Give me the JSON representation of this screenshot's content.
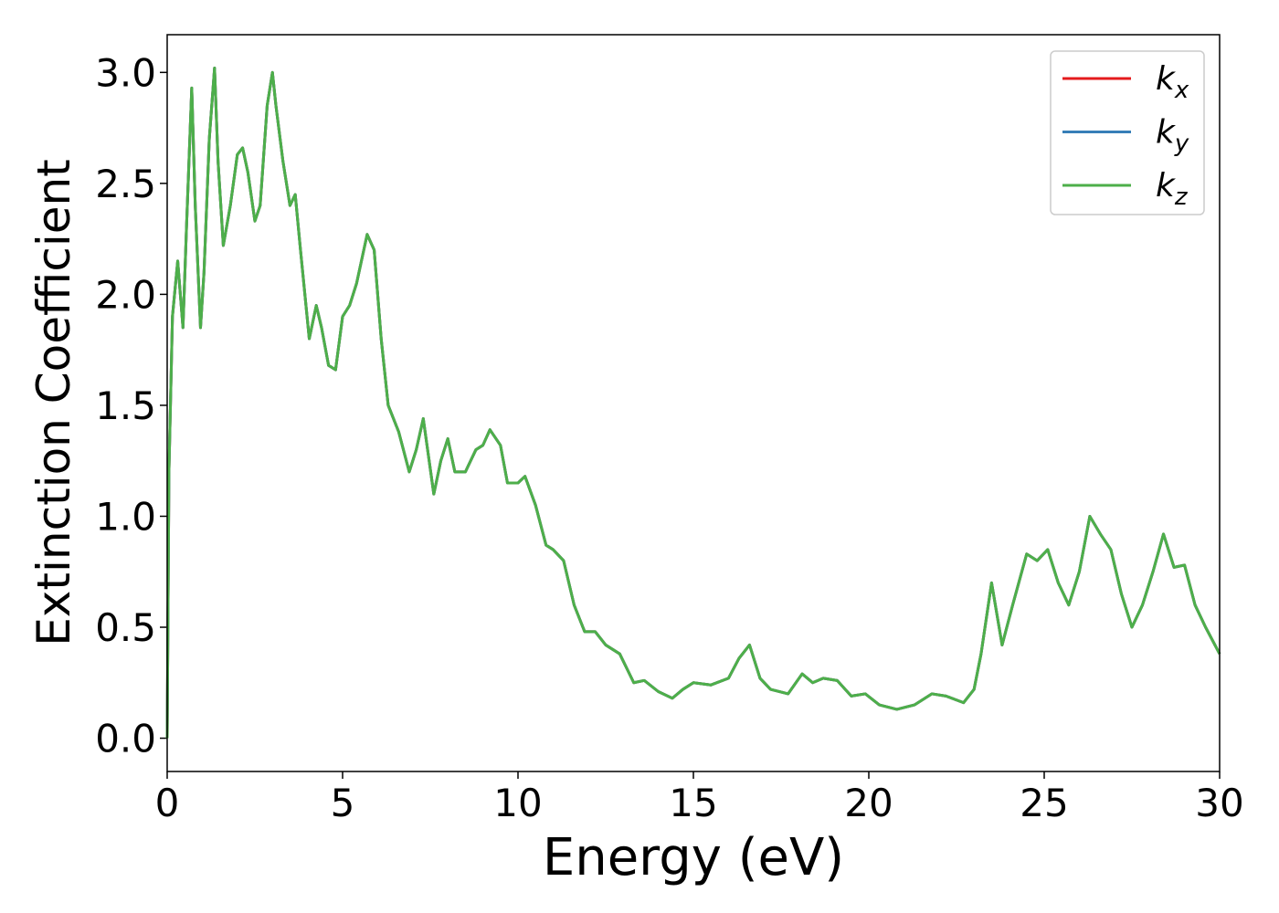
{
  "chart_data": {
    "type": "line",
    "xlabel": "Energy (eV)",
    "ylabel": "Extinction Coefficient",
    "xlim": [
      0,
      30
    ],
    "xticks": [
      0,
      5,
      10,
      15,
      20,
      25,
      30
    ],
    "ylim": [
      -0.15,
      3.17
    ],
    "yticks": [
      {
        "value": 0,
        "label": "0.0"
      },
      {
        "value": 0.5,
        "label": "0.5"
      },
      {
        "value": 1,
        "label": "1.0"
      },
      {
        "value": 1.5,
        "label": "1.5"
      },
      {
        "value": 2,
        "label": "2.0"
      },
      {
        "value": 2.5,
        "label": "2.5"
      },
      {
        "value": 3,
        "label": "3.0"
      }
    ],
    "legend": "upper right",
    "x": [
      0,
      0.05,
      0.15,
      0.3,
      0.45,
      0.55,
      0.7,
      0.8,
      0.95,
      1.05,
      1.2,
      1.35,
      1.45,
      1.6,
      1.8,
      2.0,
      2.15,
      2.3,
      2.5,
      2.65,
      2.85,
      3.0,
      3.1,
      3.3,
      3.5,
      3.65,
      3.8,
      4.05,
      4.25,
      4.4,
      4.6,
      4.8,
      5.0,
      5.2,
      5.4,
      5.7,
      5.9,
      6.1,
      6.3,
      6.6,
      6.9,
      7.1,
      7.3,
      7.6,
      7.8,
      8.0,
      8.2,
      8.5,
      8.8,
      9.0,
      9.2,
      9.5,
      9.7,
      10.0,
      10.2,
      10.5,
      10.8,
      11.0,
      11.3,
      11.6,
      11.9,
      12.2,
      12.5,
      12.9,
      13.3,
      13.6,
      14.0,
      14.4,
      14.7,
      15.0,
      15.5,
      16.0,
      16.3,
      16.6,
      16.9,
      17.2,
      17.7,
      18.1,
      18.4,
      18.7,
      19.1,
      19.5,
      19.9,
      20.3,
      20.8,
      21.3,
      21.8,
      22.2,
      22.7,
      23.0,
      23.2,
      23.5,
      23.8,
      24.1,
      24.5,
      24.8,
      25.1,
      25.4,
      25.7,
      26.0,
      26.3,
      26.6,
      26.9,
      27.2,
      27.5,
      27.8,
      28.1,
      28.4,
      28.7,
      29.0,
      29.3,
      29.6,
      30.0
    ],
    "series": [
      {
        "name": "kx",
        "color": "#e41a1c",
        "values": [
          0.0,
          1.2,
          1.9,
          2.15,
          1.85,
          2.3,
          2.93,
          2.4,
          1.85,
          2.1,
          2.7,
          3.02,
          2.6,
          2.22,
          2.4,
          2.63,
          2.66,
          2.55,
          2.33,
          2.4,
          2.85,
          3.0,
          2.85,
          2.6,
          2.4,
          2.45,
          2.2,
          1.8,
          1.95,
          1.85,
          1.68,
          1.66,
          1.9,
          1.95,
          2.05,
          2.27,
          2.2,
          1.8,
          1.5,
          1.38,
          1.2,
          1.3,
          1.44,
          1.1,
          1.25,
          1.35,
          1.2,
          1.2,
          1.3,
          1.32,
          1.39,
          1.32,
          1.15,
          1.15,
          1.18,
          1.05,
          0.87,
          0.85,
          0.8,
          0.6,
          0.48,
          0.48,
          0.42,
          0.38,
          0.25,
          0.26,
          0.21,
          0.18,
          0.22,
          0.25,
          0.24,
          0.27,
          0.36,
          0.42,
          0.27,
          0.22,
          0.2,
          0.29,
          0.25,
          0.27,
          0.26,
          0.19,
          0.2,
          0.15,
          0.13,
          0.15,
          0.2,
          0.19,
          0.16,
          0.22,
          0.38,
          0.7,
          0.42,
          0.6,
          0.83,
          0.8,
          0.85,
          0.7,
          0.6,
          0.75,
          1.0,
          0.92,
          0.85,
          0.65,
          0.5,
          0.6,
          0.75,
          0.92,
          0.77,
          0.78,
          0.6,
          0.5,
          0.38
        ]
      },
      {
        "name": "ky",
        "color": "#377eb8",
        "values": [
          0.0,
          1.2,
          1.9,
          2.15,
          1.85,
          2.3,
          2.93,
          2.4,
          1.85,
          2.1,
          2.7,
          3.02,
          2.6,
          2.22,
          2.4,
          2.63,
          2.66,
          2.55,
          2.33,
          2.4,
          2.85,
          3.0,
          2.85,
          2.6,
          2.4,
          2.45,
          2.2,
          1.8,
          1.95,
          1.85,
          1.68,
          1.66,
          1.9,
          1.95,
          2.05,
          2.27,
          2.2,
          1.8,
          1.5,
          1.38,
          1.2,
          1.3,
          1.44,
          1.1,
          1.25,
          1.35,
          1.2,
          1.2,
          1.3,
          1.32,
          1.39,
          1.32,
          1.15,
          1.15,
          1.18,
          1.05,
          0.87,
          0.85,
          0.8,
          0.6,
          0.48,
          0.48,
          0.42,
          0.38,
          0.25,
          0.26,
          0.21,
          0.18,
          0.22,
          0.25,
          0.24,
          0.27,
          0.36,
          0.42,
          0.27,
          0.22,
          0.2,
          0.29,
          0.25,
          0.27,
          0.26,
          0.19,
          0.2,
          0.15,
          0.13,
          0.15,
          0.2,
          0.19,
          0.16,
          0.22,
          0.38,
          0.7,
          0.42,
          0.6,
          0.83,
          0.8,
          0.85,
          0.7,
          0.6,
          0.75,
          1.0,
          0.92,
          0.85,
          0.65,
          0.5,
          0.6,
          0.75,
          0.92,
          0.77,
          0.78,
          0.6,
          0.5,
          0.38
        ]
      },
      {
        "name": "kz",
        "color": "#4daf4a",
        "values": [
          0.0,
          1.2,
          1.9,
          2.15,
          1.85,
          2.3,
          2.93,
          2.4,
          1.85,
          2.1,
          2.7,
          3.02,
          2.6,
          2.22,
          2.4,
          2.63,
          2.66,
          2.55,
          2.33,
          2.4,
          2.85,
          3.0,
          2.85,
          2.6,
          2.4,
          2.45,
          2.2,
          1.8,
          1.95,
          1.85,
          1.68,
          1.66,
          1.9,
          1.95,
          2.05,
          2.27,
          2.2,
          1.8,
          1.5,
          1.38,
          1.2,
          1.3,
          1.44,
          1.1,
          1.25,
          1.35,
          1.2,
          1.2,
          1.3,
          1.32,
          1.39,
          1.32,
          1.15,
          1.15,
          1.18,
          1.05,
          0.87,
          0.85,
          0.8,
          0.6,
          0.48,
          0.48,
          0.42,
          0.38,
          0.25,
          0.26,
          0.21,
          0.18,
          0.22,
          0.25,
          0.24,
          0.27,
          0.36,
          0.42,
          0.27,
          0.22,
          0.2,
          0.29,
          0.25,
          0.27,
          0.26,
          0.19,
          0.2,
          0.15,
          0.13,
          0.15,
          0.2,
          0.19,
          0.16,
          0.22,
          0.38,
          0.7,
          0.42,
          0.6,
          0.83,
          0.8,
          0.85,
          0.7,
          0.6,
          0.75,
          1.0,
          0.92,
          0.85,
          0.65,
          0.5,
          0.6,
          0.75,
          0.92,
          0.77,
          0.78,
          0.6,
          0.5,
          0.38
        ]
      }
    ]
  }
}
